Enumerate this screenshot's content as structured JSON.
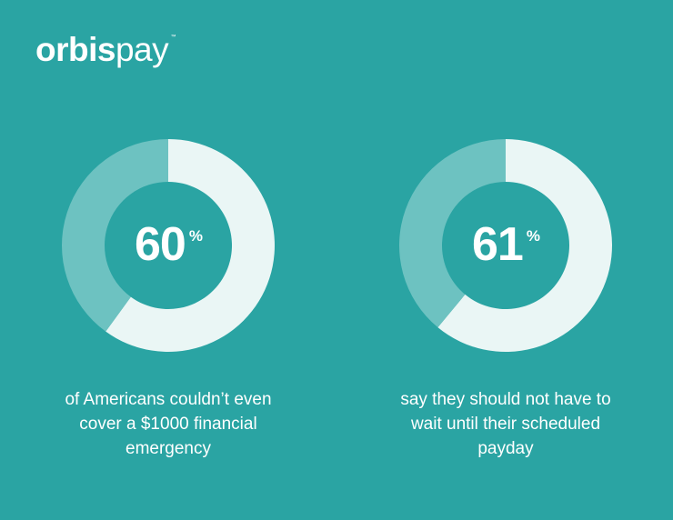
{
  "logo": {
    "bold": "orbis",
    "light": "pay",
    "tm": "™"
  },
  "colors": {
    "background": "#2aa4a3",
    "highlight": "#eaf6f5",
    "remainder": "#6dc2c1"
  },
  "chart_data": [
    {
      "type": "pie",
      "variant": "donut",
      "value": 60,
      "remainder": 40,
      "label": "60",
      "unit": "%",
      "caption": "of Americans couldn’t even cover a $1000 financial emergency"
    },
    {
      "type": "pie",
      "variant": "donut",
      "value": 61,
      "remainder": 39,
      "label": "61",
      "unit": "%",
      "caption": "say they should not have to wait until their scheduled payday"
    }
  ]
}
